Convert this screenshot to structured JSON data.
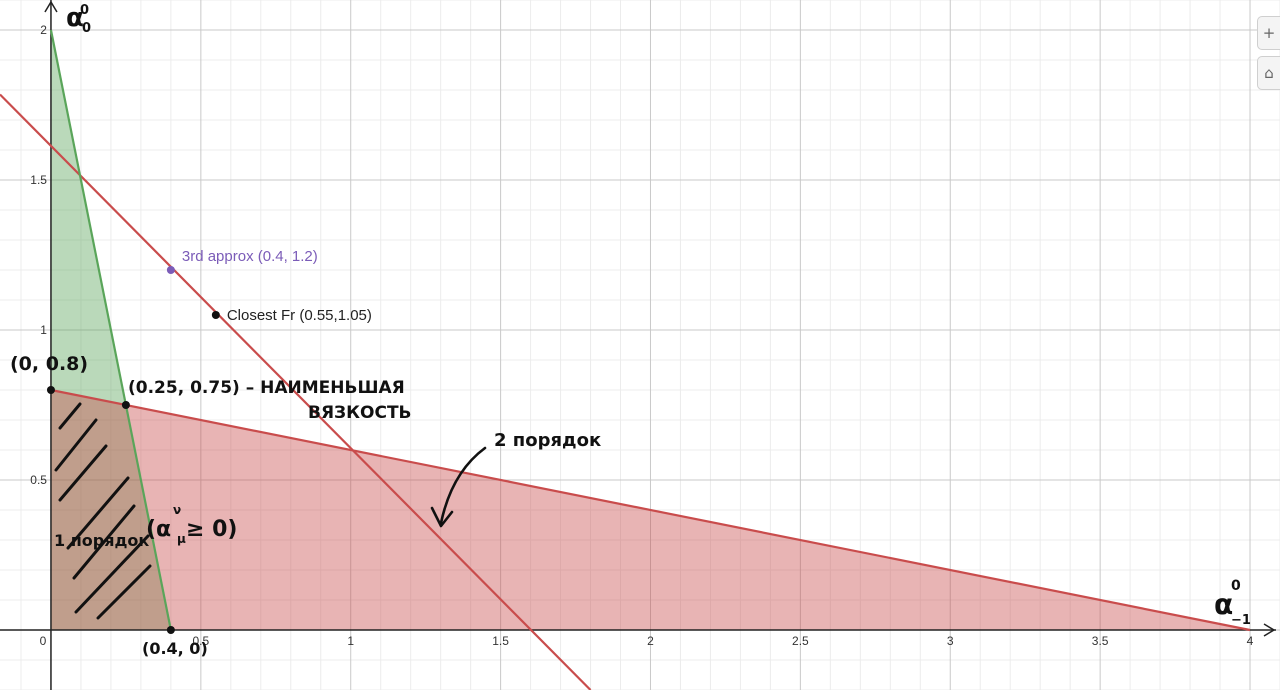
{
  "chart_data": {
    "type": "line",
    "xlim": [
      -0.17,
      4.1
    ],
    "ylim": [
      -0.2,
      2.1
    ],
    "x_ticks": [
      {
        "v": 0,
        "label": "0"
      },
      {
        "v": 0.5,
        "label": "0.5"
      },
      {
        "v": 1,
        "label": "1"
      },
      {
        "v": 1.5,
        "label": "1.5"
      },
      {
        "v": 2,
        "label": "2"
      },
      {
        "v": 2.5,
        "label": "2.5"
      },
      {
        "v": 3,
        "label": "3"
      },
      {
        "v": 3.5,
        "label": "3.5"
      },
      {
        "v": 4,
        "label": "4"
      }
    ],
    "y_ticks": [
      {
        "v": 0.5,
        "label": "0.5"
      },
      {
        "v": 1,
        "label": "1"
      },
      {
        "v": 1.5,
        "label": "1.5"
      },
      {
        "v": 2,
        "label": "2"
      }
    ],
    "grid": true,
    "colors": {
      "green": "#5aa55a",
      "red": "#c94c4c",
      "purple": "#7b5cb8",
      "black": "#111111"
    },
    "regions": [
      {
        "id": "green",
        "points": [
          [
            0,
            0
          ],
          [
            0,
            2
          ],
          [
            0.4,
            0
          ]
        ],
        "color": "#5aa55a"
      },
      {
        "id": "red",
        "points": [
          [
            0,
            0
          ],
          [
            0,
            0.8
          ],
          [
            4,
            0
          ]
        ],
        "color": "#c94c4c"
      }
    ],
    "lines": [
      {
        "id": "red-steep",
        "points": [
          [
            -0.17,
            1.785
          ],
          [
            1.8,
            -0.2
          ]
        ],
        "color": "#c94c4c"
      },
      {
        "id": "green-edge",
        "points": [
          [
            0,
            2
          ],
          [
            0.4,
            0
          ]
        ],
        "color": "#5aa55a"
      },
      {
        "id": "red-shallow",
        "points": [
          [
            0,
            0.8
          ],
          [
            4,
            0
          ]
        ],
        "color": "#c94c4c"
      }
    ],
    "points": [
      {
        "x": 0.4,
        "y": 1.2,
        "label": "3rd approx (0.4, 1.2)",
        "color": "#7b5cb8"
      },
      {
        "x": 0.55,
        "y": 1.05,
        "label": "Closest Fr (0.55,1.05)",
        "color": "#111111"
      },
      {
        "x": 0,
        "y": 0.8,
        "label": "",
        "color": "#111111"
      },
      {
        "x": 0.25,
        "y": 0.75,
        "label": "",
        "color": "#111111"
      },
      {
        "x": 0.4,
        "y": 0,
        "label": "",
        "color": "#111111"
      }
    ]
  },
  "handwriting": {
    "axis_y": "α",
    "axis_y_sup": "0",
    "axis_y_sub": "0",
    "axis_x": "α",
    "axis_x_sup": "0",
    "axis_x_sub": "−1",
    "pt_08": "(0, 0.8)",
    "pt_025": "(0.25, 0.75) – НАИМЕНЬШАЯ",
    "pt_025_b": "ВЯЗКОСТЬ",
    "order2": "2 порядок",
    "order1": "1 порядок",
    "order1_cond": "(α",
    "order1_cond_sup": "ν",
    "order1_cond_sub": "μ",
    "order1_cond_end": " ≥ 0)",
    "pt_04": "(0.4, 0)"
  },
  "ui": {
    "zoom_in": "+",
    "home": "⌂"
  }
}
